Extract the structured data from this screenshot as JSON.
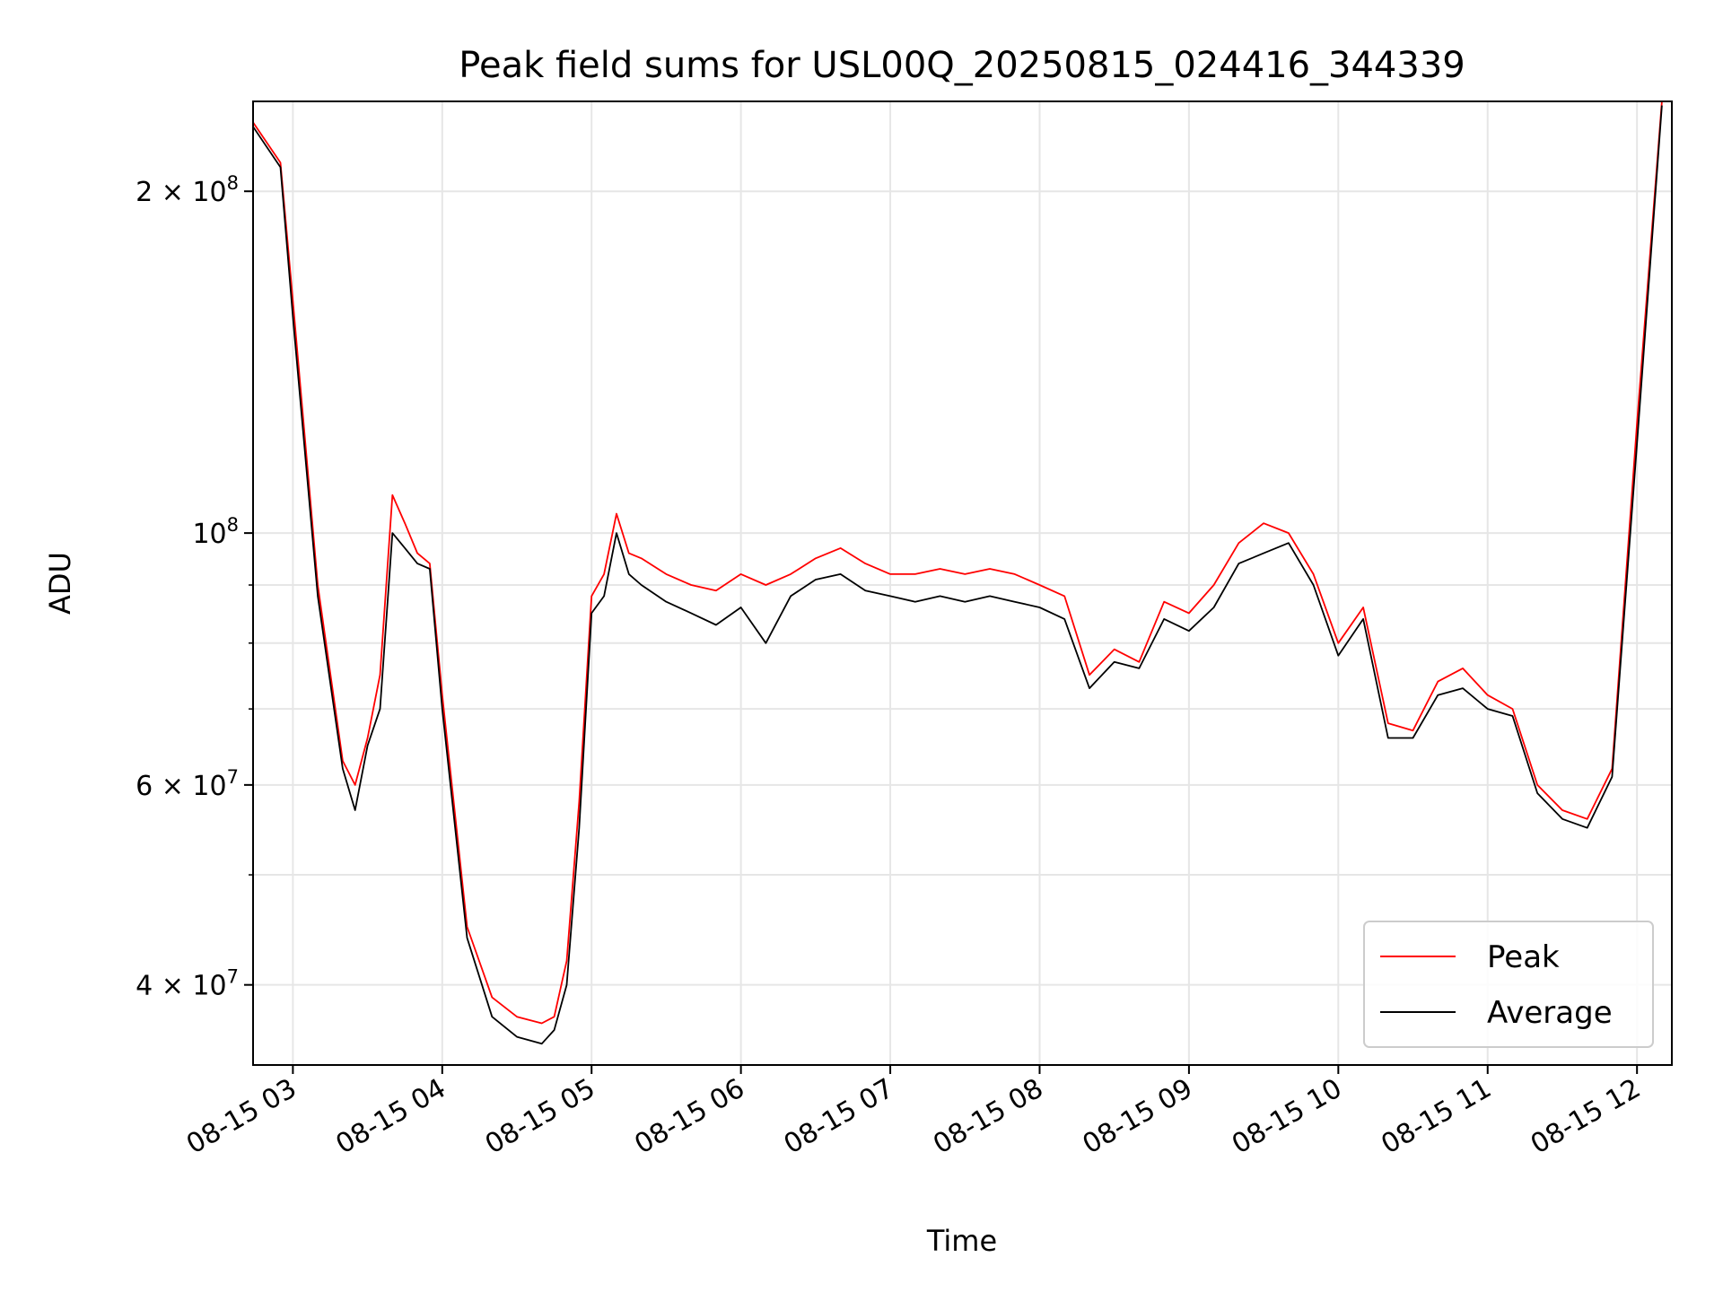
{
  "chart_data": {
    "type": "line",
    "title": "Peak field sums for USL00Q_20250815_024416_344339",
    "xlabel": "Time",
    "ylabel": "ADU",
    "yscale": "log",
    "grid": true,
    "legend_position": "lower-right",
    "xlim": [
      "2025-08-15 02:44",
      "2025-08-15 12:14"
    ],
    "ylim": [
      34000000,
      240000000
    ],
    "xticks": [
      {
        "value": "2025-08-15 03:00",
        "label": "08-15 03"
      },
      {
        "value": "2025-08-15 04:00",
        "label": "08-15 04"
      },
      {
        "value": "2025-08-15 05:00",
        "label": "08-15 05"
      },
      {
        "value": "2025-08-15 06:00",
        "label": "08-15 06"
      },
      {
        "value": "2025-08-15 07:00",
        "label": "08-15 07"
      },
      {
        "value": "2025-08-15 08:00",
        "label": "08-15 08"
      },
      {
        "value": "2025-08-15 09:00",
        "label": "08-15 09"
      },
      {
        "value": "2025-08-15 10:00",
        "label": "08-15 10"
      },
      {
        "value": "2025-08-15 11:00",
        "label": "08-15 11"
      },
      {
        "value": "2025-08-15 12:00",
        "label": "08-15 12"
      }
    ],
    "yticks_major": [
      {
        "value": 40000000,
        "mantissa": "4",
        "exponent": "7"
      },
      {
        "value": 60000000,
        "mantissa": "6",
        "exponent": "7"
      },
      {
        "value": 100000000,
        "mantissa": "",
        "exponent": "8"
      },
      {
        "value": 200000000,
        "mantissa": "2",
        "exponent": "8"
      }
    ],
    "yticks_minor": [
      50000000,
      70000000,
      80000000,
      90000000
    ],
    "series": [
      {
        "name": "Peak",
        "color": "#ff0000",
        "x": [
          "02:44",
          "02:55",
          "03:00",
          "03:10",
          "03:20",
          "03:25",
          "03:30",
          "03:35",
          "03:40",
          "03:45",
          "03:50",
          "03:55",
          "04:00",
          "04:10",
          "04:20",
          "04:30",
          "04:40",
          "04:45",
          "04:50",
          "04:55",
          "05:00",
          "05:05",
          "05:10",
          "05:15",
          "05:20",
          "05:30",
          "05:40",
          "05:50",
          "06:00",
          "06:10",
          "06:20",
          "06:30",
          "06:40",
          "06:50",
          "07:00",
          "07:10",
          "07:20",
          "07:30",
          "07:40",
          "07:50",
          "08:00",
          "08:10",
          "08:20",
          "08:30",
          "08:40",
          "08:50",
          "09:00",
          "09:10",
          "09:20",
          "09:30",
          "09:40",
          "09:50",
          "10:00",
          "10:10",
          "10:20",
          "10:30",
          "10:40",
          "10:50",
          "11:00",
          "11:10",
          "11:20",
          "11:30",
          "11:40",
          "11:50",
          "12:00",
          "12:10"
        ],
        "y": [
          230000000,
          212000000,
          160000000,
          90000000,
          63000000,
          60000000,
          66000000,
          75000000,
          108000000,
          102000000,
          96000000,
          94000000,
          72000000,
          45000000,
          39000000,
          37500000,
          37000000,
          37500000,
          42000000,
          58000000,
          88000000,
          92000000,
          104000000,
          96000000,
          95000000,
          92000000,
          90000000,
          89000000,
          92000000,
          90000000,
          92000000,
          95000000,
          97000000,
          94000000,
          92000000,
          92000000,
          93000000,
          92000000,
          93000000,
          92000000,
          90000000,
          88000000,
          75000000,
          79000000,
          77000000,
          87000000,
          85000000,
          90000000,
          98000000,
          102000000,
          100000000,
          92000000,
          80000000,
          86000000,
          68000000,
          67000000,
          74000000,
          76000000,
          72000000,
          70000000,
          60000000,
          57000000,
          56000000,
          62000000,
          125000000,
          240000000
        ]
      },
      {
        "name": "Average",
        "color": "#000000",
        "x": [
          "02:44",
          "02:55",
          "03:00",
          "03:10",
          "03:20",
          "03:25",
          "03:30",
          "03:35",
          "03:40",
          "03:45",
          "03:50",
          "03:55",
          "04:00",
          "04:10",
          "04:20",
          "04:30",
          "04:40",
          "04:45",
          "04:50",
          "04:55",
          "05:00",
          "05:05",
          "05:10",
          "05:15",
          "05:20",
          "05:30",
          "05:40",
          "05:50",
          "06:00",
          "06:10",
          "06:20",
          "06:30",
          "06:40",
          "06:50",
          "07:00",
          "07:10",
          "07:20",
          "07:30",
          "07:40",
          "07:50",
          "08:00",
          "08:10",
          "08:20",
          "08:30",
          "08:40",
          "08:50",
          "09:00",
          "09:10",
          "09:20",
          "09:30",
          "09:40",
          "09:50",
          "10:00",
          "10:10",
          "10:20",
          "10:30",
          "10:40",
          "10:50",
          "11:00",
          "11:10",
          "11:20",
          "11:30",
          "11:40",
          "11:50",
          "12:00",
          "12:10"
        ],
        "y": [
          228000000,
          210000000,
          155000000,
          88000000,
          62000000,
          57000000,
          65000000,
          70000000,
          100000000,
          97000000,
          94000000,
          93000000,
          70000000,
          44000000,
          37500000,
          36000000,
          35500000,
          36500000,
          40000000,
          55000000,
          85000000,
          88000000,
          100000000,
          92000000,
          90000000,
          87000000,
          85000000,
          83000000,
          86000000,
          80000000,
          88000000,
          91000000,
          92000000,
          89000000,
          88000000,
          87000000,
          88000000,
          87000000,
          88000000,
          87000000,
          86000000,
          84000000,
          73000000,
          77000000,
          76000000,
          84000000,
          82000000,
          86000000,
          94000000,
          96000000,
          98000000,
          90000000,
          78000000,
          84000000,
          66000000,
          66000000,
          72000000,
          73000000,
          70000000,
          69000000,
          59000000,
          56000000,
          55000000,
          61000000,
          120000000,
          238000000
        ]
      }
    ]
  }
}
